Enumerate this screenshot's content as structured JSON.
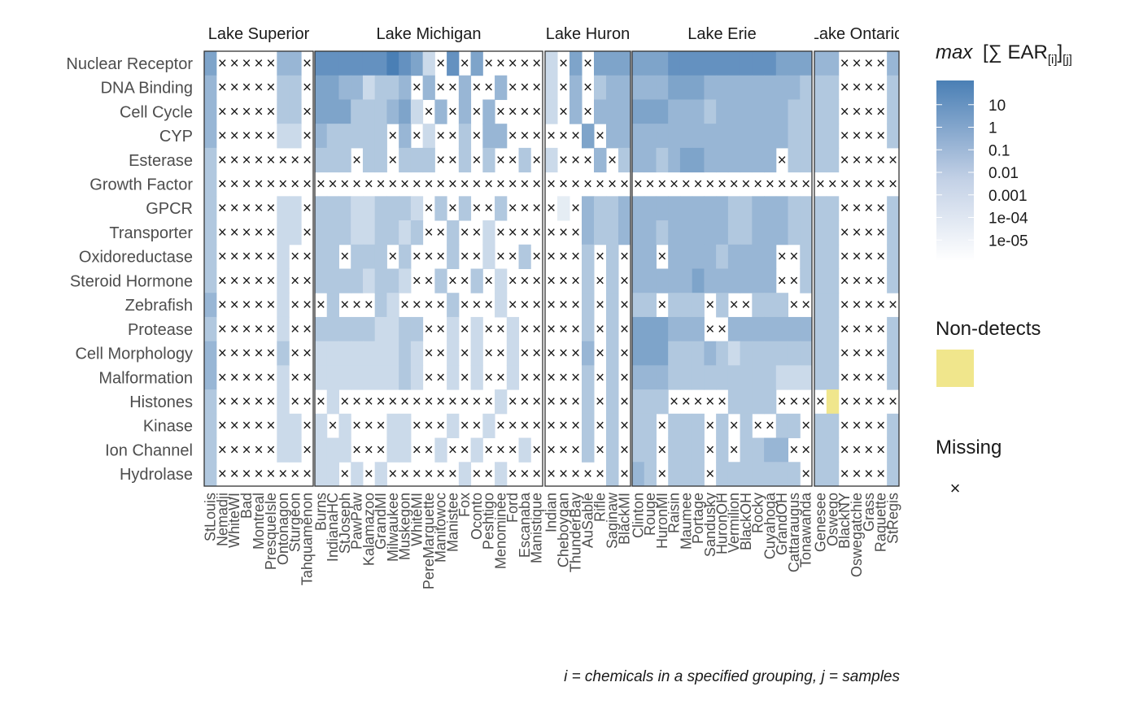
{
  "chart_data": {
    "type": "heatmap",
    "panels": [
      {
        "name": "Lake Superior",
        "sites": [
          "StLouis",
          "Nemadji",
          "WhiteWI",
          "Bad",
          "Montreal",
          "PresqueIsle",
          "Ontonagon",
          "Sturgeon",
          "Tahquamenon"
        ]
      },
      {
        "name": "Lake Michigan",
        "sites": [
          "Burns",
          "IndianaHC",
          "StJoseph",
          "PawPaw",
          "Kalamazoo",
          "GrandMI",
          "Milwaukee",
          "Muskegon",
          "WhiteMI",
          "PereMarquette",
          "Manitowoc",
          "Manistee",
          "Fox",
          "Oconto",
          "Peshtigo",
          "Menominee",
          "Ford",
          "Escanaba",
          "Manistique"
        ]
      },
      {
        "name": "Lake Huron",
        "sites": [
          "Indian",
          "Cheboygan",
          "ThunderBay",
          "AuSable",
          "Rifle",
          "Saginaw",
          "BlackMI"
        ]
      },
      {
        "name": "Lake Erie",
        "sites": [
          "Clinton",
          "Rouge",
          "HuronMI",
          "Raisin",
          "Maumee",
          "Portage",
          "Sandusky",
          "HuronOH",
          "Vermilion",
          "BlackOH",
          "Rocky",
          "Cuyahoga",
          "GrandOH",
          "Cattaraugus",
          "Tonawanda"
        ]
      },
      {
        "name": "Lake Ontario",
        "sites": [
          "Genesee",
          "Oswego",
          "BlackNY",
          "Oswegatchie",
          "Grass",
          "Raquette",
          "StRegis"
        ]
      }
    ],
    "categories": [
      "Nuclear Receptor",
      "DNA Binding",
      "Cell Cycle",
      "CYP",
      "Esterase",
      "Growth Factor",
      "GPCR",
      "Transporter",
      "Oxidoreductase",
      "Steroid Hormone",
      "Zebrafish",
      "Protease",
      "Cell Morphology",
      "Malformation",
      "Histones",
      "Kinase",
      "Ion Channel",
      "Hydrolase"
    ],
    "fill_scale": {
      "scale": "log10",
      "low_color": "#ffffff",
      "high_color": "#4a7fb5",
      "limits": [
        1e-06,
        100
      ],
      "breaks": [
        "10",
        "1",
        "0.1",
        "0.01",
        "0.001",
        "1e-04",
        "1e-05"
      ],
      "break_values": [
        10,
        1,
        0.1,
        0.01,
        0.001,
        0.0001,
        1e-05
      ]
    },
    "nondetect_color": "#f0e68c",
    "missing_symbol": "×",
    "cell_codes": "per row of each panel, one char per site: digit 0-9 = log10 decade bucket of value (0 ~ 1e-06, 9 ~ 1e+03 ... scaled), x = missing, n = non-detect, '-' = no fill",
    "cells": {
      "Lake Superior": [
        "5xxxxx44x",
        "4xxxxx33x",
        "4xxxxx33x",
        "4xxxxx22x",
        "3xxxxxxxx",
        "3xxxxxxxx",
        "3xxxxx22x",
        "3xxxxx22x",
        "3xxxxx2xx",
        "3xxxxx2xx",
        "4xxxxx2xx",
        "3xxxxx2xx",
        "4xxxxx3xx",
        "4xxxxx2xx",
        "3xxxxx2xx",
        "3xxxxx22x",
        "3xxxxx22x",
        "3xxxxxxxx"
      ],
      "Lake Michigan": [
        "6666667652x6x5xxxxx",
        "55442334x4xx4xx4xxx",
        "555333452x4x4x4xxxx",
        "433333x4x2xx3x44xxx",
        "333x33x333xx3x3xx3x",
        "xxxxxxxxxxxxxxxxxxx",
        "333223332x3x3xx3xxx",
        "333223323xx3xx2xxxx",
        "33x333x3xxx3xx2xx3x",
        "33332332xx3xx3x2xxx",
        "x3xxx32xxxx3xxx2xxx",
        "333332233xx2x2xx2xx",
        "222222232xx2x2xx2xx",
        "222222232xx2x2xx2xx",
        "x2xxxxxxxxxxxxx2xxx",
        "2x2xxx22xxx2xx2xxxx",
        "222xxx22xx2xx2xxx2x",
        "22x2x2xxxxxx2xx2xxx"
      ],
      "Lake Huron": [
        "2x5x555",
        "2x4x344",
        "2x4x444",
        "xxx5x44",
        "2xxx4x3",
        "xxxxxxx",
        "x1x4334",
        "xxx4334",
        "xxx3x3x",
        "xxx3x3x",
        "xxx3x3x",
        "xxx3x3x",
        "xxx4x3x",
        "xxx3x3x",
        "xxx3x3x",
        "xxx3x3x",
        "xxx3x3x",
        "xxxxx3x"
      ],
      "Lake Erie": [
        "555666666666555",
        "444555444444443",
        "555444344444433",
        "444444444444433",
        "443455444444x33",
        "xxxxxxxxxxxxxxx",
        "444444443344433",
        "443444443344433",
        "44x444434444xx3",
        "444445444444xx3",
        "33x333x3xx333xx",
        "555444xx4444444",
        "555333432333333",
        "444333333333222",
        "333xxxxx3333xxx",
        "33x333x3x3xx33x",
        "33x333x3x3344xx",
        "43x333x3333333x"
      ],
      "Lake Ontario": [
        "44xxxx4",
        "33xxxx3",
        "33xxxx3",
        "33xxxx3",
        "33xxxxx",
        "xxxxxxx",
        "33xxxx3",
        "33xxxx3",
        "33xxxx3",
        "33xxxx3",
        "33xxxxx",
        "33xxxx3",
        "33xxxx3",
        "33xxxx3",
        "xnxxxxx",
        "33xxxx3",
        "33xxxx3",
        "33xxxx3"
      ]
    }
  },
  "legend": {
    "title_italic": "max",
    "title_rest": "[∑ EAR",
    "title_sub1": "[i]",
    "title_close": "]",
    "title_sub2": "[j]",
    "nondetects_title": "Non-detects",
    "missing_title": "Missing",
    "missing_symbol": "×"
  },
  "caption": "i = chemicals in a specified grouping, j = samples"
}
